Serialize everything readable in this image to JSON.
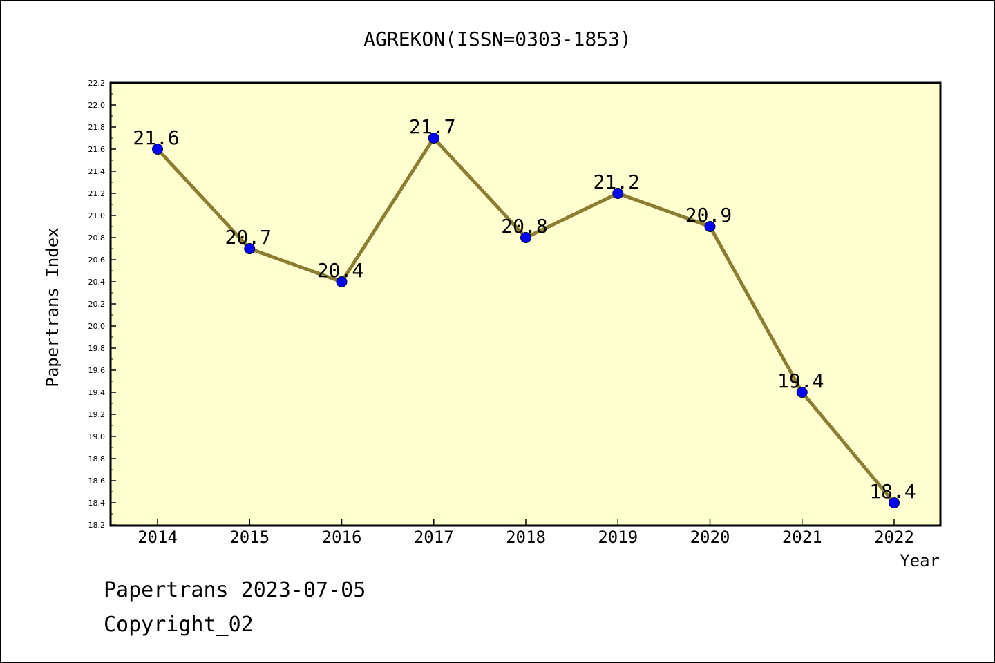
{
  "chart_data": {
    "type": "line",
    "title": "AGREKON(ISSN=0303-1853)",
    "xlabel": "Year",
    "ylabel": "Papertrans Index",
    "categories": [
      "2014",
      "2015",
      "2016",
      "2017",
      "2018",
      "2019",
      "2020",
      "2021",
      "2022"
    ],
    "values": [
      21.6,
      20.7,
      20.4,
      21.7,
      20.8,
      21.2,
      20.9,
      19.4,
      18.4
    ],
    "data_labels": [
      "21.6",
      "20.7",
      "20.4",
      "21.7",
      "20.8",
      "21.2",
      "20.9",
      "19.4",
      "18.4"
    ],
    "ylim": [
      18.2,
      22.2
    ],
    "yticks": [
      "18.2",
      "18.4",
      "18.6",
      "18.8",
      "19.0",
      "19.2",
      "19.4",
      "19.6",
      "19.8",
      "20.0",
      "20.2",
      "20.4",
      "20.6",
      "20.8",
      "21.0",
      "21.2",
      "21.4",
      "21.6",
      "21.8",
      "22.0",
      "22.2"
    ],
    "grid": false,
    "colors": {
      "plot_background": "#ffffd0",
      "line": "#8b7d32",
      "marker": "#0000ff"
    }
  },
  "footer": {
    "line1": "Papertrans 2023-07-05",
    "line2": "Copyright_02"
  }
}
